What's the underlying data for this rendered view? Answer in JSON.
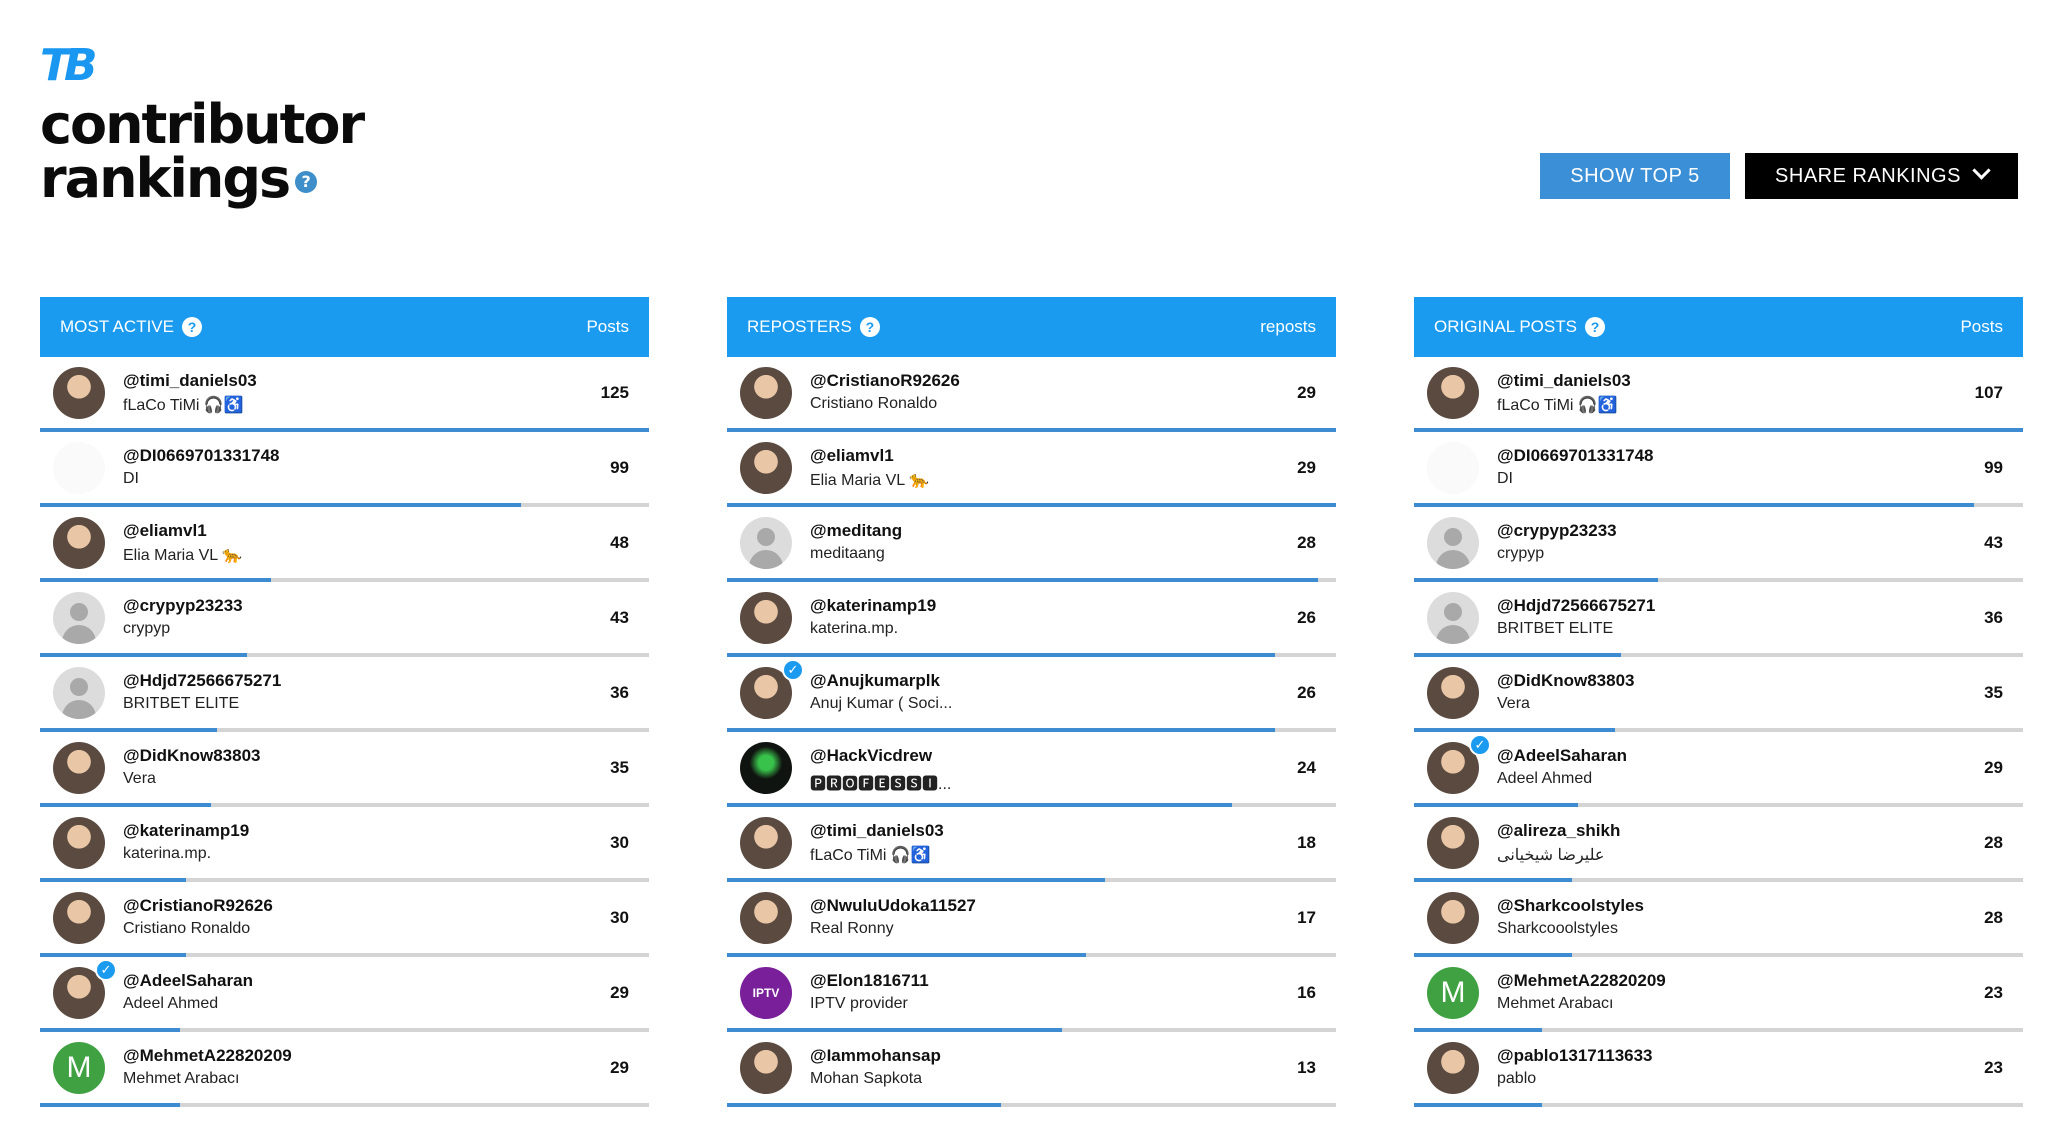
{
  "brand": {
    "logo": "TB",
    "title_line1": "contributor",
    "title_line2": "rankings",
    "help": "?"
  },
  "actions": {
    "show_top": "SHOW TOP 5",
    "share": "SHARE RANKINGS"
  },
  "colors": {
    "accent": "#1a9bf0",
    "button_blue": "#3a8fd6",
    "bar": "#3d8bd0",
    "track": "#d4d4d4"
  },
  "panels": [
    {
      "title": "MOST ACTIVE",
      "metric": "Posts",
      "rows": [
        {
          "handle": "@timi_daniels03",
          "name": "fLaCo TiMi 🎧♿",
          "count": "125",
          "avatar": "photo",
          "fraction": 1.0
        },
        {
          "handle": "@DI0669701331748",
          "name": "DI",
          "count": "99",
          "avatar": "blank",
          "fraction": 0.79
        },
        {
          "handle": "@eliamvl1",
          "name": "Elia Maria VL 🐆",
          "count": "48",
          "avatar": "photo",
          "fraction": 0.38
        },
        {
          "handle": "@crypyp23233",
          "name": "crypyp",
          "count": "43",
          "avatar": "placeholder",
          "fraction": 0.34
        },
        {
          "handle": "@Hdjd72566675271",
          "name": "BRITBET ELITE",
          "count": "36",
          "avatar": "placeholder",
          "fraction": 0.29
        },
        {
          "handle": "@DidKnow83803",
          "name": "Vera",
          "count": "35",
          "avatar": "photo",
          "fraction": 0.28
        },
        {
          "handle": "@katerinamp19",
          "name": "katerina.mp.",
          "count": "30",
          "avatar": "photo",
          "fraction": 0.24
        },
        {
          "handle": "@CristianoR92626",
          "name": "Cristiano Ronaldo",
          "count": "30",
          "avatar": "photo",
          "fraction": 0.24
        },
        {
          "handle": "@AdeelSaharan",
          "name": "Adeel Ahmed",
          "count": "29",
          "avatar": "photo",
          "verified": true,
          "fraction": 0.23
        },
        {
          "handle": "@MehmetA22820209",
          "name": "Mehmet Arabacı",
          "count": "29",
          "avatar": "letter",
          "letter": "M",
          "fraction": 0.23
        }
      ]
    },
    {
      "title": "REPOSTERS",
      "metric": "reposts",
      "rows": [
        {
          "handle": "@CristianoR92626",
          "name": "Cristiano Ronaldo",
          "count": "29",
          "avatar": "photo",
          "fraction": 1.0
        },
        {
          "handle": "@eliamvl1",
          "name": "Elia Maria VL 🐆",
          "count": "29",
          "avatar": "photo",
          "fraction": 1.0
        },
        {
          "handle": "@meditang",
          "name": "meditaang",
          "count": "28",
          "avatar": "placeholder",
          "fraction": 0.97
        },
        {
          "handle": "@katerinamp19",
          "name": "katerina.mp.",
          "count": "26",
          "avatar": "photo",
          "fraction": 0.9
        },
        {
          "handle": "@Anujkumarplk",
          "name": "Anuj Kumar ( Soci...",
          "count": "26",
          "avatar": "photo",
          "verified": true,
          "fraction": 0.9
        },
        {
          "handle": "@HackVicdrew",
          "name": "🅿🆁🅾🅵🅴🆂🆂🅸...",
          "count": "24",
          "avatar": "dark",
          "fraction": 0.83
        },
        {
          "handle": "@timi_daniels03",
          "name": "fLaCo TiMi 🎧♿",
          "count": "18",
          "avatar": "photo",
          "fraction": 0.62
        },
        {
          "handle": "@NwuluUdoka11527",
          "name": "Real Ronny",
          "count": "17",
          "avatar": "photo",
          "fraction": 0.59
        },
        {
          "handle": "@Elon1816711",
          "name": "IPTV provider",
          "count": "16",
          "avatar": "iptv",
          "letter": "IPTV",
          "fraction": 0.55
        },
        {
          "handle": "@Iammohansap",
          "name": "Mohan Sapkota",
          "count": "13",
          "avatar": "photo",
          "fraction": 0.45
        }
      ]
    },
    {
      "title": "ORIGINAL POSTS",
      "metric": "Posts",
      "rows": [
        {
          "handle": "@timi_daniels03",
          "name": "fLaCo TiMi 🎧♿",
          "count": "107",
          "avatar": "photo",
          "fraction": 1.0
        },
        {
          "handle": "@DI0669701331748",
          "name": "DI",
          "count": "99",
          "avatar": "blank",
          "fraction": 0.92
        },
        {
          "handle": "@crypyp23233",
          "name": "crypyp",
          "count": "43",
          "avatar": "placeholder",
          "fraction": 0.4
        },
        {
          "handle": "@Hdjd72566675271",
          "name": "BRITBET ELITE",
          "count": "36",
          "avatar": "placeholder",
          "fraction": 0.34
        },
        {
          "handle": "@DidKnow83803",
          "name": "Vera",
          "count": "35",
          "avatar": "photo",
          "fraction": 0.33
        },
        {
          "handle": "@AdeelSaharan",
          "name": "Adeel Ahmed",
          "count": "29",
          "avatar": "photo",
          "verified": true,
          "fraction": 0.27
        },
        {
          "handle": "@alireza_shikh",
          "name": "علیرضا شیخیانی",
          "count": "28",
          "avatar": "photo",
          "fraction": 0.26
        },
        {
          "handle": "@Sharkcoolstyles",
          "name": "Sharkcooolstyles",
          "count": "28",
          "avatar": "photo",
          "fraction": 0.26
        },
        {
          "handle": "@MehmetA22820209",
          "name": "Mehmet Arabacı",
          "count": "23",
          "avatar": "letter",
          "letter": "M",
          "fraction": 0.21
        },
        {
          "handle": "@pablo1317113633",
          "name": "pablo",
          "count": "23",
          "avatar": "photo",
          "fraction": 0.21
        }
      ]
    }
  ]
}
